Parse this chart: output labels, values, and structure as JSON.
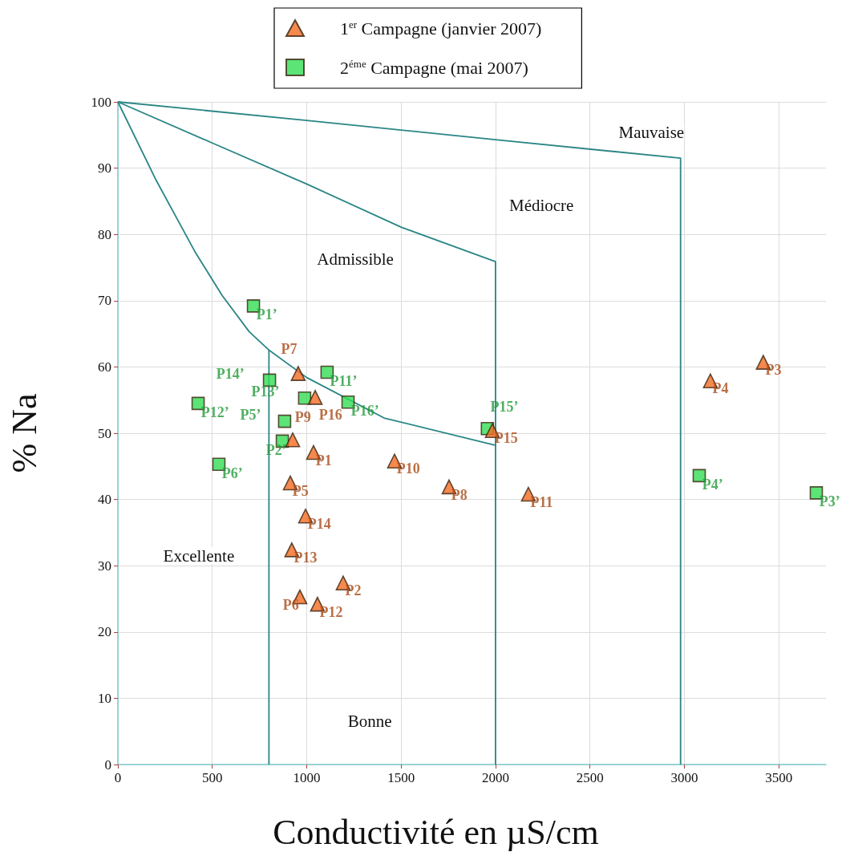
{
  "chart_data": {
    "type": "scatter",
    "xlabel": "Conductivité en µS/cm",
    "ylabel": "% Na",
    "xlim": [
      0,
      3750
    ],
    "xticks": [
      0,
      500,
      1000,
      1500,
      2000,
      2500,
      3000,
      3500
    ],
    "ylim": [
      0,
      100
    ],
    "yticks": [
      0,
      10,
      20,
      30,
      40,
      50,
      60,
      70,
      80,
      90,
      100
    ],
    "grid": true,
    "legend": "top",
    "annotations": [
      "Mauvaise",
      "Médiocre",
      "Admissible",
      "Excellente",
      "Bonne"
    ],
    "series": [
      {
        "name": "1$^{er}$ Campagne (janvier 2007)",
        "marker": "triangle",
        "color": "#f26b22",
        "x": [
          1036,
          1193,
          3418,
          3138,
          913,
          964,
          955,
          1754,
          926,
          1465,
          2174,
          1057,
          921,
          994,
          1983,
          1045
        ],
        "values": [
          47.1,
          27.4,
          60.7,
          57.9,
          42.5,
          25.3,
          59.0,
          41.9,
          49.0,
          45.8,
          40.8,
          24.2,
          32.4,
          37.5,
          50.4,
          55.4
        ],
        "value_labels": [
          "P1",
          "P2",
          "P3",
          "P4",
          "P5",
          "P6",
          "P7",
          "P8",
          "P9",
          "P10",
          "P11",
          "P12",
          "P13",
          "P14",
          "P15",
          "P16"
        ]
      },
      {
        "name": "2$^{éme}$ Campagne (mai 2007)",
        "marker": "square",
        "color": "#33dd55",
        "x": [
          718,
          871,
          3699,
          3079,
          883,
          535,
          425,
          989,
          803,
          1957,
          1108,
          1219
        ],
        "values": [
          69.2,
          48.8,
          41.0,
          43.6,
          51.8,
          45.3,
          54.5,
          55.3,
          58.0,
          50.7,
          59.2,
          54.7
        ],
        "value_labels": [
          "P1’",
          "P2’",
          "P3’",
          "P4’",
          "P5’",
          "P6’",
          "P12’",
          "P13’",
          "P14’",
          "P15’",
          "P11’",
          "P16’"
        ]
      },
      {
        "type": "line",
        "color": "#2a8585",
        "x": [
          0,
          204,
          408,
          552,
          696,
          798,
          1000,
          1410,
          1996
        ],
        "values": [
          100,
          88.1,
          77.4,
          70.8,
          65.3,
          62.6,
          58.4,
          52.3,
          48.2
        ]
      },
      {
        "type": "line",
        "color": "#2a8585",
        "x": [
          800,
          800
        ],
        "values": [
          62.6,
          0
        ]
      },
      {
        "type": "line",
        "color": "#2a8585",
        "x": [
          0,
          500,
          1000,
          1500,
          2000,
          2000
        ],
        "values": [
          100,
          93.8,
          87.6,
          81.1,
          75.9,
          0
        ]
      },
      {
        "type": "line",
        "color": "#2a8585",
        "x": [
          0,
          1000,
          2000,
          2980,
          2980
        ],
        "values": [
          100,
          97.2,
          94.3,
          91.5,
          0
        ]
      }
    ]
  }
}
